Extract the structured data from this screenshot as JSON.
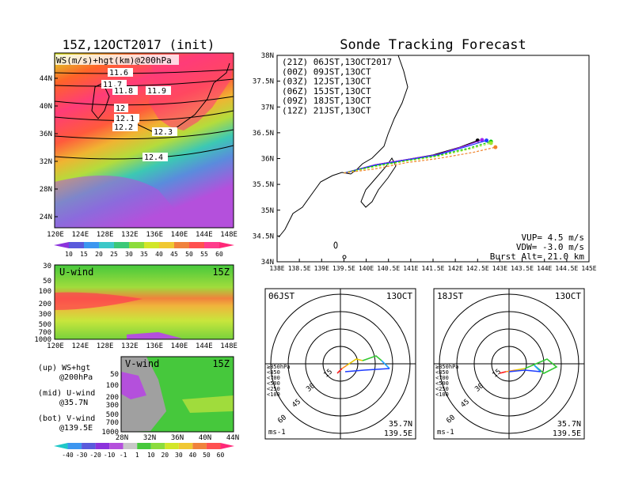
{
  "left": {
    "title": "15Z,12OCT2017 (init)",
    "map_label": "WS(m/s)+hgt(km)@200hPa",
    "lat_ticks": [
      "44N",
      "40N",
      "36N",
      "32N",
      "28N",
      "24N"
    ],
    "lon_ticks": [
      "120E",
      "124E",
      "128E",
      "132E",
      "136E",
      "140E",
      "144E",
      "148E"
    ],
    "contour_labels": [
      "11.6",
      "11.7",
      "11.8",
      "11.9",
      "12",
      "12.1",
      "12.2",
      "12.3",
      "12.4"
    ],
    "colorbar_top": [
      "10",
      "15",
      "20",
      "25",
      "30",
      "35",
      "40",
      "45",
      "50",
      "55",
      "60"
    ],
    "uwind_label": "U-wind",
    "uwind_time": "15Z",
    "uwind_pressure": [
      "30",
      "50",
      "100",
      "200",
      "300",
      "500",
      "700",
      "1000"
    ],
    "vwind_label": "V-wind",
    "vwind_time": "15Z",
    "vwind_pressure": [
      "50",
      "100",
      "200",
      "300",
      "500",
      "700",
      "1000"
    ],
    "vwind_lat": [
      "28N",
      "32N",
      "36N",
      "40N",
      "44N"
    ],
    "legend_lines": [
      "(up) WS+hgt",
      "@200hPa",
      "(mid) U-wind",
      "@35.7N",
      "(bot) V-wind",
      "@139.5E"
    ],
    "colorbar_bottom": [
      "-40",
      "-30",
      "-20",
      "-10",
      "-1",
      "1",
      "10",
      "20",
      "30",
      "40",
      "50",
      "60"
    ]
  },
  "colors": {
    "track_21Z": "#000000",
    "track_00Z": "#a020f0",
    "track_03Z": "#1e3cff",
    "track_06Z": "#00c800",
    "track_09Z": "#a0e632",
    "track_12Z": "#f08228"
  },
  "right": {
    "title": "Sonde Tracking Forecast",
    "lat_ticks": [
      "38N",
      "37.5N",
      "37N",
      "36.5N",
      "36N",
      "35.5N",
      "35N",
      "34.5N",
      "34N"
    ],
    "lon_ticks": [
      "138E",
      "138.5E",
      "139E",
      "139.5E",
      "140E",
      "140.5E",
      "141E",
      "141.5E",
      "142E",
      "142.5E",
      "143E",
      "143.5E",
      "144E",
      "144.5E",
      "145E"
    ],
    "legend": [
      {
        "label": "(21Z) 06JST,13OCT2017",
        "color": "#000000"
      },
      {
        "label": "(00Z) 09JST,13OCT",
        "color": "#a020f0"
      },
      {
        "label": "(03Z) 12JST,13OCT",
        "color": "#1e3cff"
      },
      {
        "label": "(06Z) 15JST,13OCT",
        "color": "#00c800"
      },
      {
        "label": "(09Z) 18JST,13OCT",
        "color": "#a0e632"
      },
      {
        "label": "(12Z) 21JST,13OCT",
        "color": "#f08228"
      }
    ],
    "info": [
      "VUP= 4.5 m/s",
      "VDW= -3.0 m/s",
      "Burst Alt= 21.0 km"
    ],
    "polar_left": {
      "time": "06JST",
      "date": "13OCT",
      "unit": "ms-1",
      "loc1": "35.7N",
      "loc2": "139.5E"
    },
    "polar_right": {
      "time": "18JST",
      "date": "13OCT",
      "unit": "ms-1",
      "loc1": "35.7N",
      "loc2": "139.5E"
    },
    "ring_labels": [
      "15",
      "30",
      "45",
      "60"
    ],
    "pressure_legend": [
      {
        "label": "≥850hPa",
        "color": "#ff2020"
      },
      {
        "label": "<850",
        "color": "#ff8c1e"
      },
      {
        "label": "<700",
        "color": "#e6c800"
      },
      {
        "label": "<500",
        "color": "#32c832"
      },
      {
        "label": "<250",
        "color": "#1ea0ff"
      },
      {
        "label": "<100",
        "color": "#1e3cff"
      }
    ]
  },
  "chart_data": {
    "type": "line",
    "title": "Sonde Tracking Forecast",
    "xlim": [
      138,
      145
    ],
    "ylim": [
      34,
      38
    ],
    "series": [
      {
        "name": "(21Z) 06JST,13OCT2017",
        "x": [
          139.5,
          140.2,
          140.9,
          141.5,
          142.1,
          142.5
        ],
        "y": [
          35.72,
          35.88,
          35.98,
          36.07,
          36.22,
          36.35
        ]
      },
      {
        "name": "(00Z) 09JST,13OCT",
        "x": [
          139.5,
          140.2,
          140.9,
          141.6,
          142.2,
          142.6
        ],
        "y": [
          35.72,
          35.88,
          35.98,
          36.08,
          36.24,
          36.36
        ]
      },
      {
        "name": "(03Z) 12JST,13OCT",
        "x": [
          139.5,
          140.2,
          140.9,
          141.6,
          142.2,
          142.7
        ],
        "y": [
          35.72,
          35.87,
          35.97,
          36.07,
          36.22,
          36.35
        ]
      },
      {
        "name": "(06Z) 15JST,13OCT",
        "x": [
          139.5,
          140.2,
          140.9,
          141.6,
          142.3,
          142.8
        ],
        "y": [
          35.72,
          35.86,
          35.96,
          36.06,
          36.2,
          36.33
        ]
      },
      {
        "name": "(09Z) 18JST,13OCT",
        "x": [
          139.5,
          140.2,
          140.9,
          141.6,
          142.3,
          142.8
        ],
        "y": [
          35.72,
          35.84,
          35.95,
          36.04,
          36.18,
          36.3
        ]
      },
      {
        "name": "(12Z) 21JST,13OCT",
        "x": [
          139.5,
          140.2,
          140.9,
          141.6,
          142.4,
          142.9
        ],
        "y": [
          35.72,
          35.8,
          35.92,
          36.0,
          36.12,
          36.22
        ]
      }
    ]
  }
}
